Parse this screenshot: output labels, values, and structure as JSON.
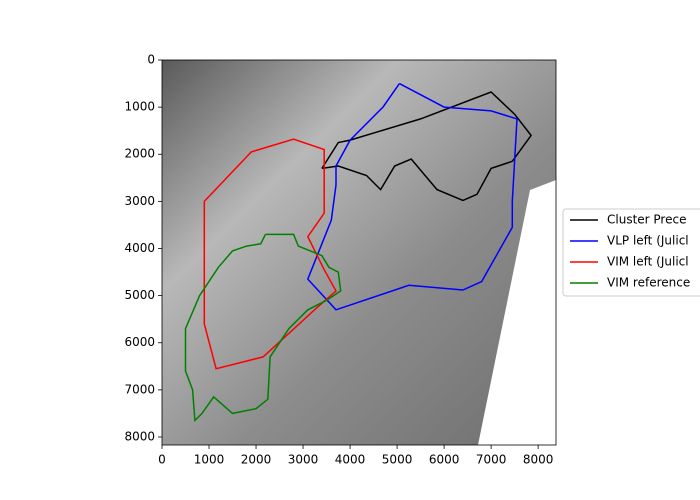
{
  "chart_data": {
    "type": "line",
    "series": [
      {
        "name": "Cluster Prece",
        "color": "#000000",
        "x": [
          3400,
          3750,
          4000,
          5500,
          7000,
          7500,
          7850,
          7450,
          7000,
          6700,
          6400,
          5850,
          5300,
          4950,
          4650,
          4350,
          3750,
          3400
        ],
        "y": [
          2300,
          1750,
          1700,
          1250,
          680,
          1150,
          1600,
          2150,
          2300,
          2850,
          2980,
          2750,
          2100,
          2250,
          2750,
          2450,
          2250,
          2300
        ]
      },
      {
        "name": "VLP left (Julicl",
        "color": "#0000ff",
        "x": [
          5050,
          4700,
          4000,
          3700,
          3700,
          3600,
          3100,
          3700,
          5250,
          6400,
          6800,
          7450,
          7450,
          7550,
          7000,
          6000,
          5050
        ],
        "y": [
          500,
          1000,
          1700,
          2250,
          2650,
          3400,
          4650,
          5300,
          4780,
          4880,
          4700,
          3550,
          3000,
          1250,
          1080,
          1000,
          500
        ]
      },
      {
        "name": "VIM left (Julicl",
        "color": "#ff0000",
        "x": [
          900,
          1900,
          2800,
          3450,
          3450,
          3100,
          3450,
          3700,
          3300,
          2150,
          1150,
          900,
          900
        ],
        "y": [
          3000,
          1950,
          1680,
          1900,
          3250,
          3750,
          4450,
          4900,
          5250,
          6300,
          6550,
          5600,
          3000
        ]
      },
      {
        "name": "VIM reference",
        "color": "#008000",
        "x": [
          2200,
          2800,
          2900,
          3400,
          3550,
          3750,
          3800,
          3500,
          3100,
          2700,
          2300,
          2250,
          2000,
          1500,
          1100,
          850,
          700,
          650,
          500,
          500,
          800,
          1200,
          1500,
          1800,
          2100,
          2200
        ],
        "y": [
          3700,
          3700,
          3950,
          4150,
          4400,
          4500,
          4900,
          5100,
          5300,
          5700,
          6300,
          7200,
          7400,
          7500,
          7150,
          7500,
          7650,
          7000,
          6600,
          5700,
          5000,
          4400,
          4050,
          3950,
          3900,
          3700
        ]
      }
    ],
    "xlim": [
      0,
      8380
    ],
    "ylim": [
      8170,
      0
    ],
    "xticks": [
      0,
      1000,
      2000,
      3000,
      4000,
      5000,
      6000,
      7000,
      8000
    ],
    "yticks": [
      0,
      1000,
      2000,
      3000,
      4000,
      5000,
      6000,
      7000,
      8000
    ],
    "legend": "right"
  }
}
